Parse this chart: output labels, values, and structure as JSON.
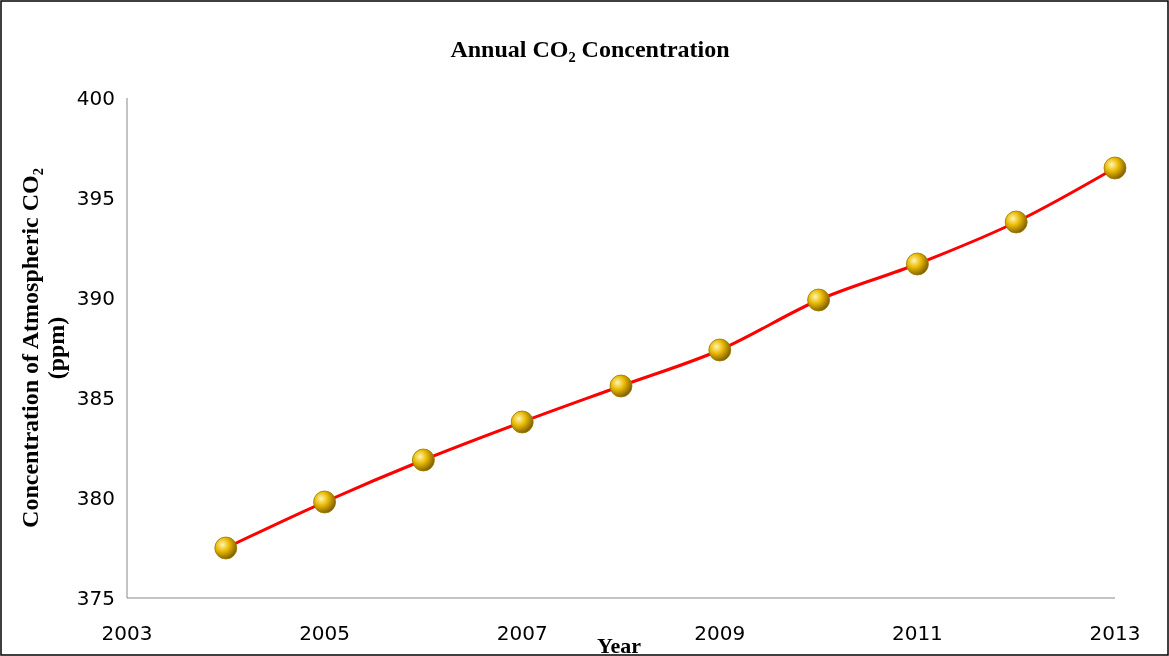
{
  "chart_data": {
    "type": "line",
    "title": "Annual  CO₂ Concentration",
    "xlabel": "Year",
    "ylabel": "Concentration of Atmospheric CO₂ (ppm)",
    "x": [
      2004,
      2005,
      2006,
      2007,
      2008,
      2009,
      2010,
      2011,
      2012,
      2013
    ],
    "series": [
      {
        "color": "#ff0000",
        "values": [
          377.5,
          379.8,
          381.9,
          383.8,
          385.6,
          387.4,
          389.9,
          391.7,
          393.8,
          396.5
        ]
      }
    ],
    "xlim": [
      2003,
      2013
    ],
    "xticks": [
      2003,
      2005,
      2007,
      2009,
      2011,
      2013
    ],
    "ylim": [
      375,
      400
    ],
    "yticks": [
      375,
      380,
      385,
      390,
      395,
      400
    ],
    "grid": false,
    "marker": "circle",
    "line_style": "solid"
  }
}
